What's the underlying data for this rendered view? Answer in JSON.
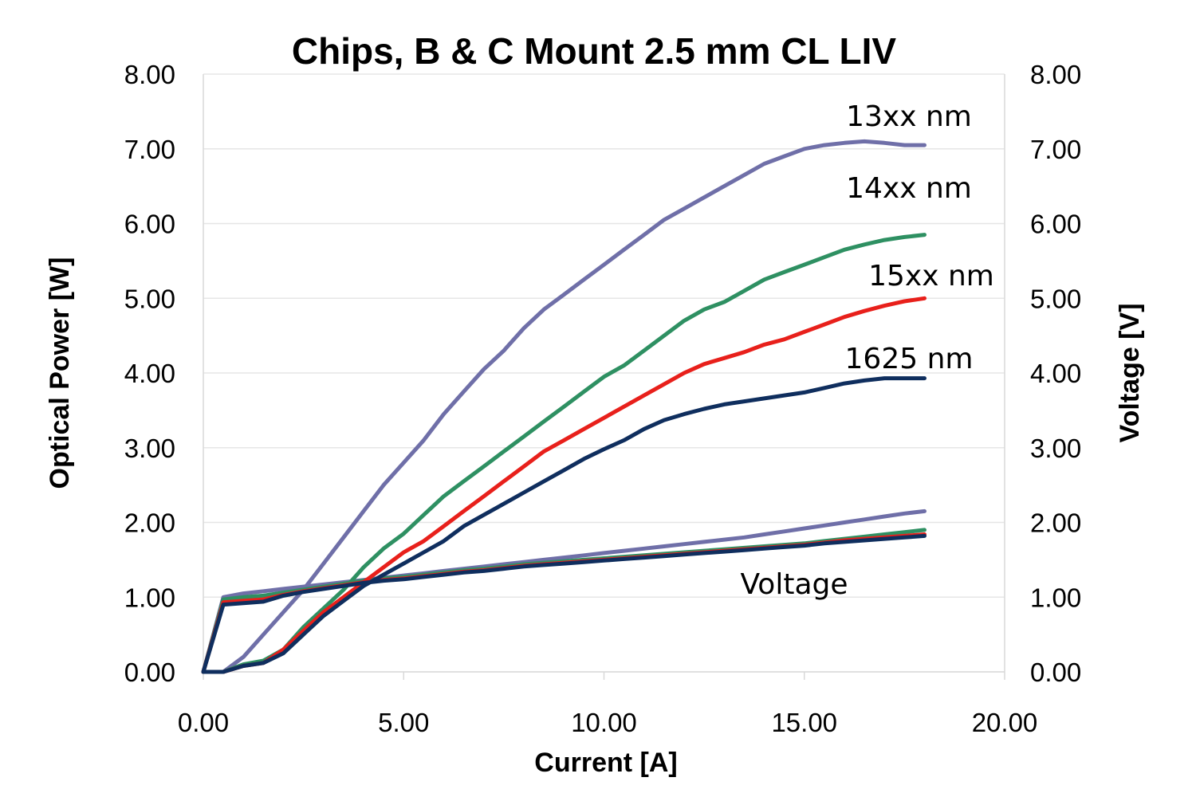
{
  "chart_data": {
    "type": "line",
    "title": "Chips, B & C Mount 2.5 mm CL LIV",
    "xlabel": "Current [A]",
    "ylabel": "Optical Power [W]",
    "y2label": "Voltage [V]",
    "xlim": [
      0,
      20
    ],
    "ylim": [
      0,
      8
    ],
    "y2lim": [
      0,
      8
    ],
    "xticks": [
      "0.00",
      "5.00",
      "10.00",
      "15.00",
      "20.00"
    ],
    "yticks": [
      "0.00",
      "1.00",
      "2.00",
      "3.00",
      "4.00",
      "5.00",
      "6.00",
      "7.00",
      "8.00"
    ],
    "y2ticks": [
      "0.00",
      "1.00",
      "2.00",
      "3.00",
      "4.00",
      "5.00",
      "6.00",
      "7.00",
      "8.00"
    ],
    "grid": true,
    "labels": {
      "s13xx": "13xx nm",
      "s14xx": "14xx nm",
      "s15xx": "15xx nm",
      "s1625": "1625 nm",
      "voltage": "Voltage"
    },
    "series": [
      {
        "key": "s13xx",
        "color": "#6f6fa8",
        "x": [
          0,
          0.5,
          1.0,
          1.5,
          2.0,
          2.5,
          3.0,
          3.5,
          4.0,
          4.5,
          5.0,
          5.5,
          6.0,
          6.5,
          7.0,
          7.5,
          8.0,
          8.5,
          9.0,
          9.5,
          10.0,
          10.5,
          11.0,
          11.5,
          12.0,
          12.5,
          13.0,
          13.5,
          14.0,
          14.5,
          15.0,
          15.5,
          16.0,
          16.5,
          17.0,
          17.5,
          18.0
        ],
        "power": [
          0.0,
          0.0,
          0.2,
          0.5,
          0.8,
          1.1,
          1.45,
          1.8,
          2.15,
          2.5,
          2.8,
          3.1,
          3.45,
          3.75,
          4.05,
          4.3,
          4.6,
          4.85,
          5.05,
          5.25,
          5.45,
          5.65,
          5.85,
          6.05,
          6.2,
          6.35,
          6.5,
          6.65,
          6.8,
          6.9,
          7.0,
          7.05,
          7.08,
          7.1,
          7.08,
          7.05,
          7.05
        ],
        "voltage": [
          0.0,
          1.0,
          1.05,
          1.08,
          1.11,
          1.14,
          1.17,
          1.2,
          1.23,
          1.26,
          1.29,
          1.32,
          1.35,
          1.38,
          1.41,
          1.44,
          1.47,
          1.5,
          1.53,
          1.56,
          1.59,
          1.62,
          1.65,
          1.68,
          1.71,
          1.74,
          1.77,
          1.8,
          1.84,
          1.88,
          1.92,
          1.96,
          2.0,
          2.04,
          2.08,
          2.12,
          2.15
        ]
      },
      {
        "key": "s14xx",
        "color": "#2e9062",
        "x": [
          0,
          0.5,
          1.0,
          1.5,
          2.0,
          2.5,
          3.0,
          3.5,
          4.0,
          4.5,
          5.0,
          5.5,
          6.0,
          6.5,
          7.0,
          7.5,
          8.0,
          8.5,
          9.0,
          9.5,
          10.0,
          10.5,
          11.0,
          11.5,
          12.0,
          12.5,
          13.0,
          13.5,
          14.0,
          14.5,
          15.0,
          15.5,
          16.0,
          16.5,
          17.0,
          17.5,
          18.0
        ],
        "power": [
          0.0,
          0.0,
          0.1,
          0.15,
          0.3,
          0.6,
          0.85,
          1.1,
          1.4,
          1.65,
          1.85,
          2.1,
          2.35,
          2.55,
          2.75,
          2.95,
          3.15,
          3.35,
          3.55,
          3.75,
          3.95,
          4.1,
          4.3,
          4.5,
          4.7,
          4.85,
          4.95,
          5.1,
          5.25,
          5.35,
          5.45,
          5.55,
          5.65,
          5.72,
          5.78,
          5.82,
          5.85
        ],
        "voltage": [
          0.0,
          0.97,
          1.0,
          1.02,
          1.06,
          1.1,
          1.14,
          1.18,
          1.22,
          1.25,
          1.27,
          1.3,
          1.33,
          1.36,
          1.38,
          1.41,
          1.44,
          1.46,
          1.48,
          1.5,
          1.52,
          1.54,
          1.56,
          1.58,
          1.6,
          1.62,
          1.64,
          1.66,
          1.68,
          1.7,
          1.72,
          1.75,
          1.78,
          1.81,
          1.84,
          1.87,
          1.9
        ]
      },
      {
        "key": "s15xx",
        "color": "#e8201b",
        "x": [
          0,
          0.5,
          1.0,
          1.5,
          2.0,
          2.5,
          3.0,
          3.5,
          4.0,
          4.5,
          5.0,
          5.5,
          6.0,
          6.5,
          7.0,
          7.5,
          8.0,
          8.5,
          9.0,
          9.5,
          10.0,
          10.5,
          11.0,
          11.5,
          12.0,
          12.5,
          13.0,
          13.5,
          14.0,
          14.5,
          15.0,
          15.5,
          16.0,
          16.5,
          17.0,
          17.5,
          18.0
        ],
        "power": [
          0.0,
          0.0,
          0.08,
          0.12,
          0.3,
          0.55,
          0.8,
          1.0,
          1.2,
          1.4,
          1.6,
          1.75,
          1.95,
          2.15,
          2.35,
          2.55,
          2.75,
          2.95,
          3.1,
          3.25,
          3.4,
          3.55,
          3.7,
          3.85,
          4.0,
          4.12,
          4.2,
          4.28,
          4.38,
          4.45,
          4.55,
          4.65,
          4.75,
          4.83,
          4.9,
          4.96,
          5.0
        ],
        "voltage": [
          0.0,
          0.93,
          0.95,
          0.97,
          1.03,
          1.08,
          1.12,
          1.16,
          1.2,
          1.23,
          1.25,
          1.28,
          1.31,
          1.34,
          1.36,
          1.39,
          1.42,
          1.44,
          1.46,
          1.48,
          1.5,
          1.52,
          1.54,
          1.56,
          1.58,
          1.6,
          1.62,
          1.64,
          1.66,
          1.68,
          1.7,
          1.73,
          1.76,
          1.78,
          1.8,
          1.82,
          1.84
        ]
      },
      {
        "key": "s1625",
        "color": "#0f2e5e",
        "x": [
          0,
          0.5,
          1.0,
          1.5,
          2.0,
          2.5,
          3.0,
          3.5,
          4.0,
          4.5,
          5.0,
          5.5,
          6.0,
          6.5,
          7.0,
          7.5,
          8.0,
          8.5,
          9.0,
          9.5,
          10.0,
          10.5,
          11.0,
          11.5,
          12.0,
          12.5,
          13.0,
          13.5,
          14.0,
          14.5,
          15.0,
          15.5,
          16.0,
          16.5,
          17.0,
          17.5,
          18.0
        ],
        "power": [
          0.0,
          0.0,
          0.08,
          0.12,
          0.25,
          0.5,
          0.75,
          0.95,
          1.15,
          1.3,
          1.45,
          1.6,
          1.75,
          1.95,
          2.1,
          2.25,
          2.4,
          2.55,
          2.7,
          2.85,
          2.98,
          3.1,
          3.25,
          3.37,
          3.45,
          3.52,
          3.58,
          3.62,
          3.66,
          3.7,
          3.74,
          3.8,
          3.86,
          3.9,
          3.93,
          3.93,
          3.93
        ],
        "voltage": [
          0.0,
          0.9,
          0.92,
          0.94,
          1.02,
          1.07,
          1.11,
          1.15,
          1.19,
          1.22,
          1.24,
          1.27,
          1.3,
          1.33,
          1.35,
          1.38,
          1.41,
          1.43,
          1.45,
          1.47,
          1.49,
          1.51,
          1.53,
          1.55,
          1.57,
          1.59,
          1.61,
          1.63,
          1.65,
          1.67,
          1.69,
          1.72,
          1.74,
          1.76,
          1.78,
          1.8,
          1.82
        ]
      }
    ]
  }
}
